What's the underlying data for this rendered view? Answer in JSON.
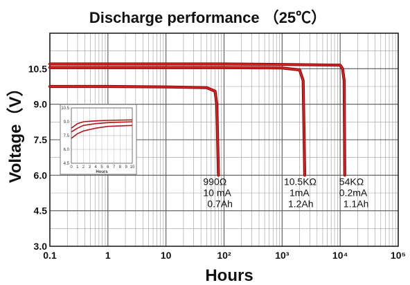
{
  "chart_data": {
    "type": "line",
    "title": "Discharge performance （25℃）",
    "xlabel": "Hours",
    "ylabel": "Voltage（V）",
    "x_scale": "log",
    "xlim": [
      0.1,
      100000
    ],
    "ylim": [
      3.0,
      12.0
    ],
    "grid": true,
    "x_ticks": [
      "0.1",
      "1",
      "10",
      "10²",
      "10³",
      "10⁴",
      "10⁵"
    ],
    "y_ticks": [
      "3.0",
      "4.5",
      "6.0",
      "7.5",
      "9.0",
      "10.5"
    ],
    "series": [
      {
        "color": "#e02020",
        "x": [
          0.1,
          1,
          10,
          50,
          70,
          75,
          80
        ],
        "y": [
          9.75,
          9.75,
          9.73,
          9.7,
          9.55,
          9.0,
          6.0
        ],
        "annotation": [
          "990Ω",
          "10 mA",
          "0.7Ah"
        ]
      },
      {
        "color": "#e02020",
        "x": [
          0.1,
          1,
          10,
          100,
          1000,
          2000,
          2300,
          2450
        ],
        "y": [
          10.55,
          10.55,
          10.55,
          10.55,
          10.53,
          10.45,
          10.0,
          6.0
        ],
        "annotation": [
          "10.5KΩ",
          "1mA",
          "1.2Ah"
        ]
      },
      {
        "color": "#e02020",
        "x": [
          0.1,
          1,
          100,
          1000,
          10000,
          11000,
          11700,
          12000
        ],
        "y": [
          10.7,
          10.7,
          10.7,
          10.68,
          10.65,
          10.5,
          10.0,
          6.0
        ],
        "annotation": [
          "54KΩ",
          "0.2mA",
          "1.1Ah"
        ]
      }
    ],
    "inset": {
      "xlabel": "Hours",
      "x_ticks": [
        "0",
        "1",
        "2",
        "3",
        "4",
        "5",
        "6",
        "7",
        "8",
        "9",
        "10"
      ],
      "y_ticks": [
        "10.5",
        "9.0",
        "7.5",
        "6.0",
        "4.5"
      ],
      "series": [
        {
          "x": [
            0,
            1,
            2,
            4,
            6,
            10
          ],
          "y": [
            8.3,
            8.8,
            9.0,
            9.1,
            9.15,
            9.2
          ]
        },
        {
          "x": [
            0,
            1,
            2,
            4,
            6,
            10
          ],
          "y": [
            7.9,
            8.3,
            8.6,
            8.8,
            8.9,
            9.0
          ]
        },
        {
          "x": [
            0,
            1,
            2,
            4,
            6,
            10
          ],
          "y": [
            7.2,
            7.7,
            8.0,
            8.3,
            8.5,
            8.6
          ]
        }
      ]
    }
  }
}
